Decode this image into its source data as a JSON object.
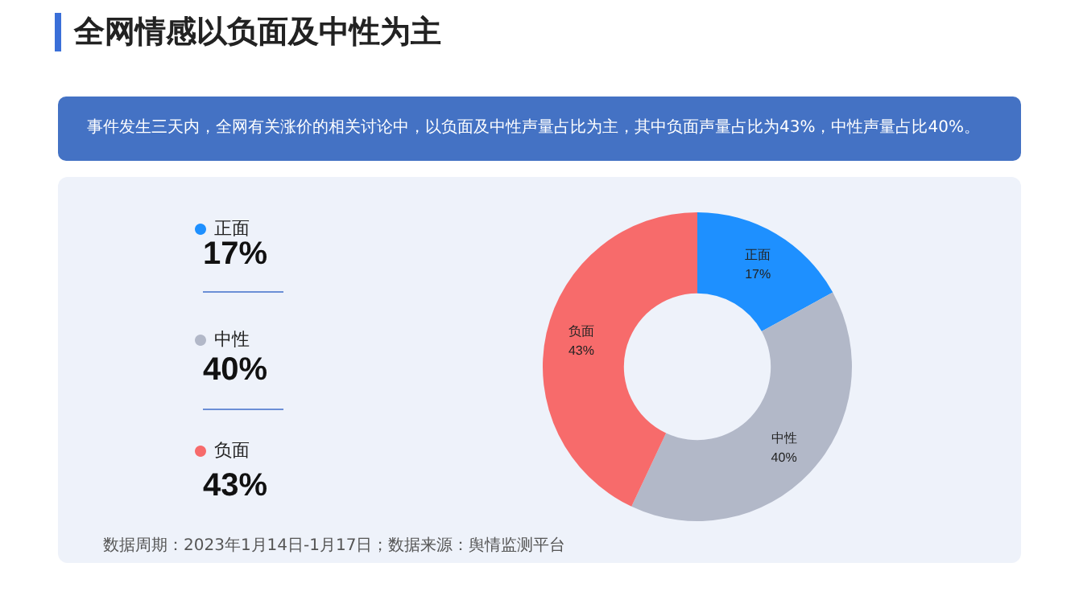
{
  "chart_data": {
    "type": "donut",
    "title": "全网情感以负面及中性为主",
    "subtitle": "事件发生三天内，全网有关涨价的相关讨论中，以负面及中性声量占比为主，其中负面声量占比为43%，中性声量占比40%。",
    "categories": [
      "正面",
      "中性",
      "负面"
    ],
    "values": [
      17,
      40,
      43
    ],
    "value_labels": [
      "17%",
      "40%",
      "43%"
    ],
    "colors": [
      "#1e90ff",
      "#b2b8c8",
      "#f76b6b"
    ],
    "legend": "left",
    "annotations": [
      "数据周期：2023年1月14日-1月17日；数据来源：舆情监测平台"
    ]
  }
}
